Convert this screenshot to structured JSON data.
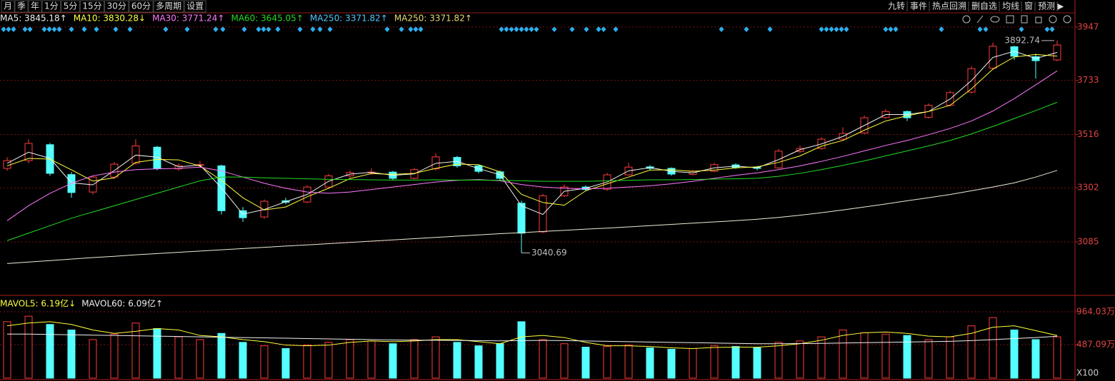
{
  "toolbar": {
    "left": [
      "月",
      "季",
      "年",
      "1分",
      "5分",
      "15分",
      "30分",
      "60分",
      "多周期",
      "设置"
    ],
    "right": [
      "九转",
      "事件",
      "热点回溯",
      "删自选",
      "均线",
      "窗",
      "预测"
    ]
  },
  "chart_data": [
    {
      "type": "candlestick",
      "up_color": "#ff3c3c",
      "down_color": "#54ffff",
      "open": [
        3380,
        3411,
        3475,
        3355,
        3285,
        3345,
        3400,
        3465,
        3378,
        3392,
        3390,
        3210,
        3185,
        3250,
        3245,
        3305,
        3350,
        3362,
        3365,
        3340,
        3378,
        3424,
        3390,
        3366,
        3240,
        3125,
        3270,
        3305,
        3296,
        3354,
        3386,
        3380,
        3356,
        3368,
        3394,
        3383,
        3382,
        3448,
        3460,
        3497,
        3522,
        3584,
        3608,
        3585,
        3633,
        3686,
        3782,
        3868,
        3828,
        3815
      ],
      "high": [
        3425,
        3497,
        3482,
        3365,
        3352,
        3405,
        3497,
        3470,
        3400,
        3410,
        3395,
        3225,
        3255,
        3262,
        3312,
        3358,
        3372,
        3380,
        3370,
        3382,
        3440,
        3430,
        3395,
        3372,
        3250,
        3278,
        3315,
        3312,
        3362,
        3402,
        3393,
        3384,
        3374,
        3402,
        3400,
        3390,
        3458,
        3472,
        3505,
        3545,
        3592,
        3618,
        3612,
        3640,
        3692,
        3790,
        3885,
        3872,
        3840,
        3892.74
      ],
      "low": [
        3370,
        3400,
        3350,
        3262,
        3275,
        3338,
        3395,
        3372,
        3370,
        3385,
        3195,
        3165,
        3178,
        3236,
        3240,
        3300,
        3343,
        3355,
        3332,
        3336,
        3372,
        3382,
        3360,
        3330,
        3040.69,
        3120,
        3265,
        3288,
        3290,
        3350,
        3372,
        3350,
        3352,
        3364,
        3378,
        3372,
        3378,
        3440,
        3455,
        3490,
        3518,
        3578,
        3570,
        3580,
        3628,
        3680,
        3775,
        3815,
        3740,
        3810
      ],
      "close": [
        3411,
        3480,
        3360,
        3283,
        3345,
        3397,
        3470,
        3380,
        3391,
        3395,
        3210,
        3182,
        3248,
        3244,
        3305,
        3350,
        3363,
        3365,
        3340,
        3375,
        3426,
        3390,
        3368,
        3340,
        3120,
        3270,
        3305,
        3295,
        3354,
        3385,
        3380,
        3357,
        3368,
        3395,
        3383,
        3380,
        3449,
        3460,
        3497,
        3520,
        3583,
        3608,
        3583,
        3633,
        3684,
        3780,
        3870,
        3830,
        3812,
        3875
      ],
      "ylim": [
        2876,
        4004
      ],
      "yticks": [
        3947,
        3733,
        3516,
        3302,
        3085
      ],
      "grid": true,
      "series": [
        {
          "name": "MA5",
          "color": "#f0f0f0",
          "legend": "MA5: 3845.18↑",
          "values": [
            3400,
            3445,
            3420,
            3322,
            3314,
            3371,
            3433,
            3425,
            3386,
            3393,
            3302,
            3196,
            3215,
            3246,
            3275,
            3328,
            3357,
            3364,
            3352,
            3358,
            3400,
            3408,
            3379,
            3354,
            3230,
            3195,
            3288,
            3300,
            3325,
            3370,
            3383,
            3368,
            3362,
            3382,
            3389,
            3382,
            3415,
            3455,
            3478,
            3508,
            3552,
            3596,
            3596,
            3608,
            3658,
            3732,
            3825,
            3850,
            3821,
            3845.18
          ]
        },
        {
          "name": "MA10",
          "color": "#ffff3c",
          "legend": "MA10: 3830.28↓",
          "values": [
            3390,
            3420,
            3417,
            3374,
            3329,
            3342,
            3404,
            3416,
            3414,
            3389,
            3332,
            3262,
            3213,
            3225,
            3266,
            3300,
            3339,
            3359,
            3356,
            3360,
            3380,
            3397,
            3395,
            3366,
            3276,
            3243,
            3232,
            3290,
            3318,
            3345,
            3373,
            3374,
            3368,
            3373,
            3382,
            3386,
            3404,
            3430,
            3469,
            3492,
            3533,
            3570,
            3591,
            3608,
            3633,
            3699,
            3778,
            3827,
            3837,
            3830.28
          ]
        },
        {
          "name": "MA30",
          "color": "#ff78ff",
          "legend": "MA30: 3771.24↑",
          "values": [
            3170,
            3230,
            3280,
            3320,
            3350,
            3365,
            3375,
            3378,
            3380,
            3385,
            3370,
            3345,
            3320,
            3300,
            3285,
            3280,
            3285,
            3295,
            3305,
            3315,
            3325,
            3332,
            3335,
            3330,
            3315,
            3305,
            3300,
            3298,
            3300,
            3305,
            3310,
            3318,
            3328,
            3340,
            3352,
            3362,
            3375,
            3390,
            3408,
            3428,
            3450,
            3472,
            3492,
            3515,
            3540,
            3570,
            3610,
            3660,
            3715,
            3771.24
          ]
        },
        {
          "name": "MA60",
          "color": "#22dd22",
          "legend": "MA60: 3645.05↑",
          "values": [
            3090,
            3120,
            3150,
            3180,
            3205,
            3230,
            3255,
            3280,
            3305,
            3330,
            3345,
            3345,
            3342,
            3340,
            3338,
            3336,
            3335,
            3334,
            3333,
            3333,
            3334,
            3333,
            3333,
            3332,
            3330,
            3328,
            3328,
            3328,
            3330,
            3332,
            3334,
            3334,
            3335,
            3337,
            3338,
            3340,
            3348,
            3360,
            3375,
            3392,
            3410,
            3430,
            3450,
            3470,
            3492,
            3518,
            3548,
            3580,
            3612,
            3645.05
          ]
        },
        {
          "name": "MA250",
          "color": "#ececd8",
          "legend": "MA250: 3371.82↑",
          "legend_color": "#4cc8ff",
          "values": [
            2998,
            3004,
            3010,
            3016,
            3022,
            3027,
            3033,
            3038,
            3043,
            3048,
            3053,
            3058,
            3063,
            3068,
            3073,
            3078,
            3083,
            3088,
            3093,
            3098,
            3103,
            3108,
            3113,
            3118,
            3122,
            3127,
            3131,
            3136,
            3140,
            3145,
            3150,
            3155,
            3160,
            3165,
            3170,
            3176,
            3183,
            3192,
            3202,
            3213,
            3225,
            3237,
            3250,
            3262,
            3275,
            3290,
            3305,
            3322,
            3345,
            3371.82
          ]
        }
      ],
      "extra_legend": {
        "text": "MA250: 3371.82↑",
        "color": "#e8d870"
      }
    },
    {
      "type": "bar",
      "values": [
        820,
        900,
        780,
        700,
        560,
        640,
        800,
        720,
        600,
        560,
        650,
        520,
        470,
        430,
        480,
        520,
        560,
        540,
        500,
        560,
        600,
        520,
        470,
        500,
        820,
        560,
        500,
        450,
        460,
        480,
        440,
        420,
        430,
        470,
        460,
        440,
        520,
        540,
        600,
        700,
        660,
        640,
        620,
        560,
        600,
        760,
        880,
        700,
        560,
        600
      ],
      "ylim": [
        0,
        1140
      ],
      "yticks": [
        {
          "value": 964.03,
          "label": "964.03万"
        },
        {
          "value": 487.09,
          "label": "487.09万"
        }
      ],
      "unit": "X100",
      "series": [
        {
          "name": "MAVOL5",
          "color": "#ffff3c",
          "legend": "MAVOL5: 6.19亿↓",
          "values": [
            760,
            800,
            820,
            780,
            700,
            650,
            680,
            720,
            700,
            620,
            600,
            560,
            530,
            480,
            470,
            480,
            520,
            540,
            530,
            540,
            560,
            560,
            530,
            500,
            600,
            620,
            590,
            520,
            470,
            470,
            460,
            440,
            430,
            445,
            450,
            450,
            470,
            500,
            550,
            620,
            660,
            670,
            650,
            610,
            600,
            650,
            740,
            760,
            690,
            619
          ]
        },
        {
          "name": "MAVOL60",
          "color": "#f0f0f0",
          "legend": "MAVOL60: 6.09亿↑",
          "values": [
            640,
            640,
            635,
            630,
            625,
            620,
            615,
            610,
            605,
            600,
            595,
            590,
            585,
            580,
            575,
            570,
            565,
            560,
            555,
            552,
            550,
            548,
            545,
            542,
            545,
            548,
            545,
            540,
            535,
            530,
            525,
            520,
            515,
            510,
            505,
            500,
            500,
            502,
            505,
            510,
            515,
            520,
            525,
            530,
            535,
            545,
            560,
            575,
            590,
            609
          ]
        }
      ]
    }
  ]
}
